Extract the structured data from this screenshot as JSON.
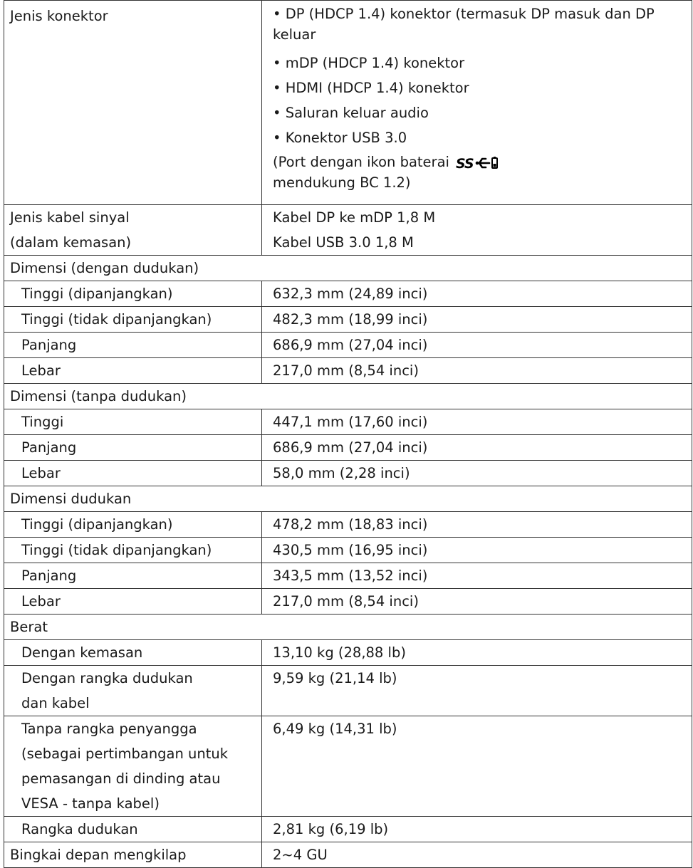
{
  "connector": {
    "label": "Jenis konektor",
    "items": [
      "• DP (HDCP 1.4) konektor (termasuk DP masuk dan DP keluar",
      "• mDP (HDCP 1.4) konektor",
      "• HDMI (HDCP 1.4) konektor",
      "• Saluran keluar audio",
      "• Konektor USB 3.0"
    ],
    "note_a": "(Port dengan ikon baterai",
    "note_b": "mendukung BC 1.2)",
    "icon": "usb-ss-battery-icon"
  },
  "cable": {
    "label_1": "Jenis kabel sinyal",
    "label_2": "(dalam kemasan)",
    "values": [
      "Kabel DP ke mDP 1,8 M",
      "Kabel USB 3.0 1,8 M"
    ]
  },
  "dim_stand": {
    "title": "Dimensi (dengan dudukan)",
    "rows": [
      [
        "Tinggi (dipanjangkan)",
        "632,3 mm (24,89 inci)"
      ],
      [
        "Tinggi (tidak dipanjangkan)",
        "482,3 mm (18,99 inci)"
      ],
      [
        "Panjang",
        "686,9 mm (27,04 inci)"
      ],
      [
        "Lebar",
        "217,0 mm (8,54 inci)"
      ]
    ]
  },
  "dim_nostand": {
    "title": "Dimensi (tanpa dudukan)",
    "rows": [
      [
        "Tinggi",
        "447,1 mm (17,60 inci)"
      ],
      [
        "Panjang",
        "686,9 mm (27,04 inci)"
      ],
      [
        "Lebar",
        "58,0 mm (2,28 inci)"
      ]
    ]
  },
  "dim_base": {
    "title": "Dimensi dudukan",
    "rows": [
      [
        "Tinggi (dipanjangkan)",
        "478,2 mm (18,83 inci)"
      ],
      [
        "Tinggi (tidak dipanjangkan)",
        "430,5 mm (16,95 inci)"
      ],
      [
        "Panjang",
        "343,5 mm (13,52 inci)"
      ],
      [
        "Lebar",
        "217,0 mm (8,54 inci)"
      ]
    ]
  },
  "weight": {
    "title": "Berat",
    "pack_label": "Dengan kemasan",
    "pack_value": "13,10 kg (28,88 lb)",
    "withstand_label": [
      "Dengan rangka dudukan",
      "dan kabel"
    ],
    "withstand_value": "9,59 kg (21,14 lb)",
    "nostand_label": [
      "Tanpa rangka penyangga",
      "(sebagai pertimbangan untuk",
      "pemasangan di dinding atau",
      "VESA - tanpa kabel)"
    ],
    "nostand_value": "6,49 kg (14,31 lb)",
    "frame_label": "Rangka dudukan",
    "frame_value": "2,81 kg (6,19 lb)"
  },
  "gloss": {
    "label": "Bingkai depan mengkilap",
    "value": "2~4 GU"
  }
}
